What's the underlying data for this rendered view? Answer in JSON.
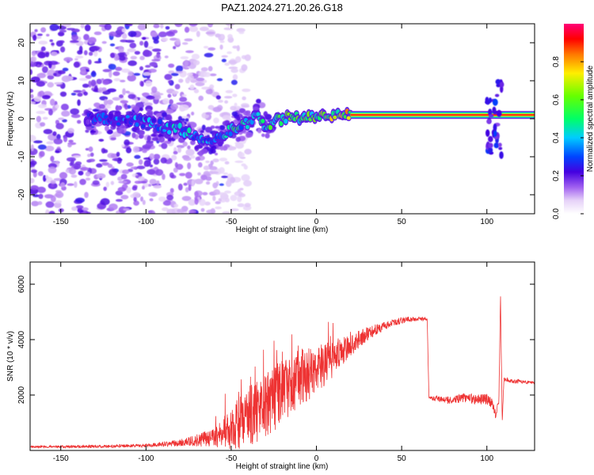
{
  "title": "PAZ1.2024.271.20.26.G18",
  "colors": {
    "line": "#ee3333",
    "spectrum_core": "#ff1a1a",
    "background": "#ffffff"
  },
  "chart_data": [
    {
      "type": "heatmap",
      "xlabel": "Height of straight line (km)",
      "ylabel": "Frequency (Hz)",
      "xlim": [
        -168,
        128
      ],
      "ylim": [
        -25,
        25
      ],
      "x_ticks": [
        -150,
        -100,
        -50,
        0,
        50,
        100
      ],
      "y_ticks": [
        -20,
        -10,
        0,
        10,
        20
      ],
      "colorbar": {
        "label": "Normalized spectral amplitude",
        "range": [
          0,
          1
        ],
        "ticks": [
          "0.0",
          "0.2",
          "0.4",
          "0.6",
          "0.8"
        ],
        "colormap": "rainbow (white-violet-blue-cyan-green-yellow-red-magenta)"
      },
      "ridge": {
        "x": [
          -135,
          -120,
          -100,
          -90,
          -80,
          -70,
          -60,
          -50,
          -40,
          -35,
          -30,
          -20,
          -10,
          0,
          10,
          20,
          50,
          75,
          100,
          110,
          128
        ],
        "frequency": [
          0,
          0,
          -1,
          -2,
          -3,
          -5,
          -6,
          -3,
          -1,
          2,
          -2,
          0,
          0.5,
          1,
          1,
          1,
          1,
          1,
          1,
          1,
          1
        ],
        "amplitude": [
          0.3,
          0.35,
          0.4,
          0.45,
          0.45,
          0.45,
          0.45,
          0.5,
          0.55,
          0.5,
          0.55,
          0.6,
          0.65,
          0.7,
          0.75,
          0.85,
          0.9,
          0.85,
          0.9,
          0.95,
          0.95
        ]
      },
      "noise_region": {
        "x_from": -168,
        "x_to": -60,
        "frequency_spread": 25
      }
    },
    {
      "type": "line",
      "xlabel": "Height of straight line (km)",
      "ylabel": "SNR (10 * v/v)",
      "xlim": [
        -168,
        128
      ],
      "ylim": [
        0,
        6800
      ],
      "x_ticks": [
        -150,
        -100,
        -50,
        0,
        50,
        100
      ],
      "y_ticks": [
        2000,
        4000,
        6000
      ],
      "envelope": {
        "x": [
          -168,
          -120,
          -100,
          -80,
          -60,
          -55,
          -50,
          -40,
          -30,
          -20,
          -10,
          0,
          10,
          20,
          30,
          40,
          50,
          60,
          65,
          66,
          75,
          78,
          85,
          95,
          100,
          103,
          105,
          107,
          108,
          109,
          110,
          115,
          128
        ],
        "value": [
          130,
          150,
          180,
          280,
          450,
          650,
          800,
          1200,
          1600,
          2100,
          2600,
          2900,
          3300,
          3800,
          4200,
          4500,
          4700,
          4750,
          4760,
          1900,
          1850,
          1800,
          1900,
          1850,
          1850,
          1700,
          1300,
          1700,
          5500,
          1000,
          2600,
          2500,
          2450
        ]
      },
      "noise_amplitude": {
        "x": [
          -168,
          -100,
          -80,
          -60,
          -50,
          -40,
          -20,
          0,
          20,
          40,
          60,
          66,
          80,
          100,
          112,
          128
        ],
        "amp": [
          40,
          60,
          120,
          350,
          800,
          1100,
          1200,
          900,
          400,
          150,
          80,
          80,
          150,
          200,
          80,
          50
        ]
      }
    }
  ]
}
